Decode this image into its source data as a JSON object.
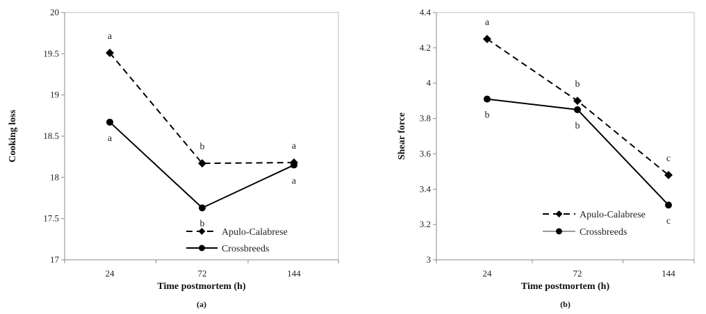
{
  "chart_data": [
    {
      "type": "line",
      "panel_label": "(a)",
      "xlabel": "Time postmortem (h)",
      "ylabel": "Cooking loss",
      "categories": [
        "24",
        "72",
        "144"
      ],
      "ylim": [
        17,
        20
      ],
      "yticks": [
        "17",
        "17.5",
        "18",
        "18.5",
        "19",
        "19.5",
        "20"
      ],
      "series": [
        {
          "name": "Apulo-Calabrese",
          "values": [
            19.51,
            18.17,
            18.18
          ],
          "style": "dashed",
          "marker": "diamond",
          "color": "#000000",
          "sig": [
            "a",
            "b",
            "a"
          ],
          "sig_pos": [
            "above",
            "above",
            "above"
          ]
        },
        {
          "name": "Crossbreeds",
          "values": [
            18.67,
            17.63,
            18.15
          ],
          "style": "solid",
          "marker": "circle",
          "color": "#000000",
          "sig": [
            "a",
            "b",
            "a"
          ],
          "sig_pos": [
            "below",
            "below",
            "below"
          ]
        }
      ],
      "legend": "bottom-right"
    },
    {
      "type": "line",
      "panel_label": "(b)",
      "xlabel": "Time postmortem (h)",
      "ylabel": "Shear force",
      "categories": [
        "24",
        "72",
        "144"
      ],
      "ylim": [
        3,
        4.4
      ],
      "yticks": [
        "3",
        "3.2",
        "3.4",
        "3.6",
        "3.8",
        "4",
        "4.2",
        "4.4"
      ],
      "series": [
        {
          "name": "Apulo-Calabrese",
          "values": [
            4.25,
            3.9,
            3.48
          ],
          "style": "dashed",
          "marker": "diamond",
          "color": "#000000",
          "sig": [
            "a",
            "b",
            "c"
          ],
          "sig_pos": [
            "above",
            "above",
            "above"
          ]
        },
        {
          "name": "Crossbreeds",
          "values": [
            3.91,
            3.85,
            3.31
          ],
          "style": "solid",
          "marker": "circle",
          "color": "#000000",
          "sig": [
            "b",
            "b",
            "c"
          ],
          "sig_pos": [
            "below",
            "below",
            "below"
          ]
        }
      ],
      "legend": "bottom-right"
    }
  ]
}
